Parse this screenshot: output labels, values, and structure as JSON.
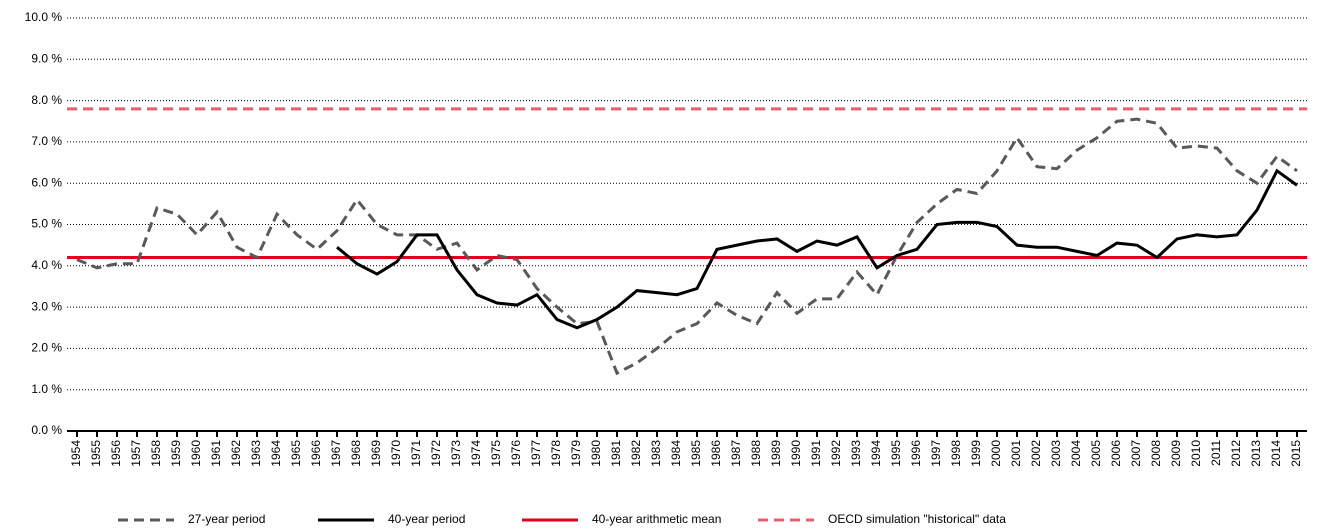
{
  "chart_data": {
    "type": "line",
    "categories": [
      "1954",
      "1955",
      "1956",
      "1957",
      "1958",
      "1959",
      "1960",
      "1961",
      "1962",
      "1963",
      "1964",
      "1965",
      "1966",
      "1967",
      "1968",
      "1969",
      "1970",
      "1971",
      "1972",
      "1973",
      "1974",
      "1975",
      "1976",
      "1977",
      "1978",
      "1979",
      "1980",
      "1981",
      "1982",
      "1983",
      "1984",
      "1985",
      "1986",
      "1987",
      "1988",
      "1989",
      "1990",
      "1991",
      "1992",
      "1993",
      "1994",
      "1995",
      "1996",
      "1997",
      "1998",
      "1999",
      "2000",
      "2001",
      "2002",
      "2003",
      "2004",
      "2005",
      "2006",
      "2007",
      "2008",
      "2009",
      "2010",
      "2011",
      "2012",
      "2013",
      "2014",
      "2015"
    ],
    "series": [
      {
        "name": "27-year period",
        "color": "#595959",
        "dash": true,
        "values": [
          4.15,
          3.95,
          4.05,
          4.05,
          5.4,
          5.25,
          4.75,
          5.3,
          4.45,
          4.2,
          5.25,
          4.75,
          4.4,
          4.85,
          5.6,
          5.0,
          4.75,
          4.75,
          4.4,
          4.55,
          3.9,
          4.25,
          4.15,
          3.45,
          3.0,
          2.6,
          2.65,
          1.4,
          1.65,
          2.0,
          2.4,
          2.6,
          3.1,
          2.8,
          2.6,
          3.35,
          2.85,
          3.2,
          3.2,
          3.85,
          3.3,
          4.25,
          5.05,
          5.5,
          5.85,
          5.75,
          6.3,
          7.1,
          6.4,
          6.35,
          6.8,
          7.1,
          7.5,
          7.55,
          7.45,
          6.85,
          6.9,
          6.85,
          6.3,
          6.0,
          6.65,
          6.3
        ]
      },
      {
        "name": "40-year period",
        "color": "#000000",
        "dash": false,
        "values": [
          null,
          null,
          null,
          null,
          null,
          null,
          null,
          null,
          null,
          null,
          null,
          null,
          null,
          4.45,
          4.05,
          3.8,
          4.1,
          4.75,
          4.75,
          3.9,
          3.3,
          3.1,
          3.05,
          3.3,
          2.7,
          2.5,
          2.7,
          3.0,
          3.4,
          3.35,
          3.3,
          3.45,
          4.4,
          4.5,
          4.6,
          4.65,
          4.35,
          4.6,
          4.5,
          4.7,
          3.95,
          4.25,
          4.4,
          5.0,
          5.05,
          5.05,
          4.95,
          4.5,
          4.45,
          4.45,
          4.35,
          4.25,
          4.55,
          4.5,
          4.2,
          4.65,
          4.75,
          4.7,
          4.75,
          5.35,
          6.3,
          5.95
        ]
      }
    ],
    "reference_lines": [
      {
        "name": "40-year arithmetic mean",
        "color": "#e3001b",
        "dash": false,
        "value": 4.2
      },
      {
        "name": "OECD simulation \"historical\" data",
        "color": "#e8606e",
        "dash": true,
        "value": 7.8
      }
    ],
    "ylim": [
      0,
      10
    ],
    "yticks": [
      {
        "value": 0,
        "label": "0.0 %"
      },
      {
        "value": 1,
        "label": "1.0 %"
      },
      {
        "value": 2,
        "label": "2.0 %"
      },
      {
        "value": 3,
        "label": "3.0 %"
      },
      {
        "value": 4,
        "label": "4.0 %"
      },
      {
        "value": 5,
        "label": "5.0 %"
      },
      {
        "value": 6,
        "label": "6.0 %"
      },
      {
        "value": 7,
        "label": "7.0 %"
      },
      {
        "value": 8,
        "label": "8.0 %"
      },
      {
        "value": 9,
        "label": "9.0 %"
      },
      {
        "value": 10,
        "label": "10.0 %"
      }
    ],
    "grid": true
  }
}
